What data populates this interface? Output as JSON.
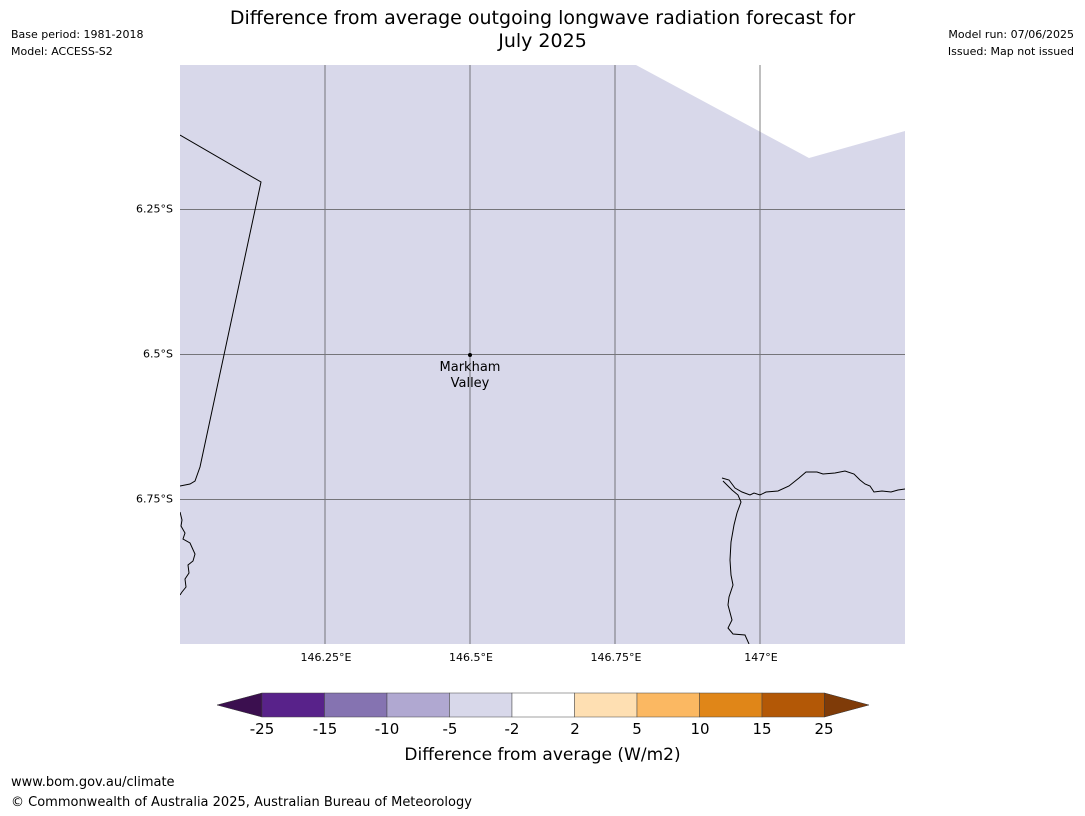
{
  "header": {
    "base_period": "Base period: 1981-2018",
    "model": "Model: ACCESS-S2",
    "title_line1": "Difference from average outgoing longwave radiation forecast for",
    "title_line2": "July 2025",
    "model_run": "Model run: 07/06/2025",
    "issued": "Issued: Map not issued"
  },
  "map": {
    "fill_color": "#d8d8ea",
    "lat_labels": [
      "6.25°S",
      "6.5°S",
      "6.75°S"
    ],
    "lon_labels": [
      "146.25°E",
      "146.5°E",
      "146.75°E",
      "147°E"
    ],
    "place": {
      "line1": "Markham",
      "line2": "Valley"
    }
  },
  "colorbar": {
    "label": "Difference from average (W/m2)",
    "ticks": [
      "-25",
      "-15",
      "-10",
      "-5",
      "-2",
      "2",
      "5",
      "10",
      "15",
      "25"
    ],
    "colors": {
      "below": "#3b0f4f",
      "c1": "#58228a",
      "c2": "#8573b1",
      "c3": "#b0a8d1",
      "c4": "#d8d8ea",
      "c5": "#ffffff",
      "c6": "#fedfb2",
      "c7": "#fbb862",
      "c8": "#e08618",
      "c9": "#b35806",
      "above": "#7f3b08"
    }
  },
  "footer": {
    "website": "www.bom.gov.au/climate",
    "copyright": "© Commonwealth of Australia 2025, Australian Bureau of Meteorology"
  }
}
